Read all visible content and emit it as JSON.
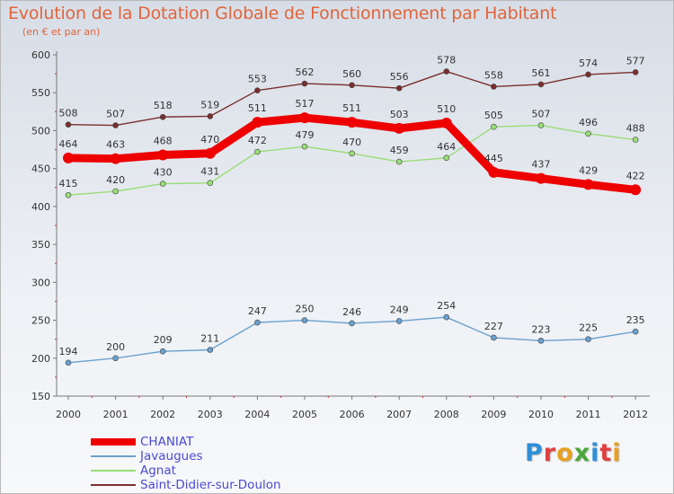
{
  "header": {
    "title": "Evolution de la Dotation Globale de Fonctionnement par Habitant",
    "subtitle": "(en € et par an)"
  },
  "chart_data": {
    "type": "line",
    "title": "Evolution de la Dotation Globale de Fonctionnement par Habitant",
    "subtitle": "(en € et par an)",
    "xlabel": "",
    "ylabel": "",
    "x": [
      "2000",
      "2001",
      "2002",
      "2003",
      "2004",
      "2005",
      "2006",
      "2007",
      "2008",
      "2009",
      "2010",
      "2011",
      "2012"
    ],
    "ylim": [
      150,
      600
    ],
    "yticks": [
      150,
      200,
      250,
      300,
      350,
      400,
      450,
      500,
      550,
      600
    ],
    "grid": false,
    "legend_position": "bottom-left",
    "series": [
      {
        "name": "CHANIAT",
        "color": "#ee0000",
        "emphasis": true,
        "values": [
          464,
          463,
          468,
          470,
          511,
          517,
          511,
          503,
          510,
          445,
          437,
          429,
          422
        ]
      },
      {
        "name": "Javaugues",
        "color": "#6aa0cf",
        "emphasis": false,
        "values": [
          194,
          200,
          209,
          211,
          247,
          250,
          246,
          249,
          254,
          227,
          223,
          225,
          235
        ]
      },
      {
        "name": "Agnat",
        "color": "#99dd77",
        "emphasis": false,
        "values": [
          415,
          420,
          430,
          431,
          472,
          479,
          470,
          459,
          464,
          505,
          507,
          496,
          488
        ]
      },
      {
        "name": "Saint-Didier-sur-Doulon",
        "color": "#7a2e2e",
        "emphasis": false,
        "values": [
          508,
          507,
          518,
          519,
          553,
          562,
          560,
          556,
          578,
          558,
          561,
          574,
          577
        ]
      }
    ]
  },
  "logo": {
    "letters": [
      "P",
      "r",
      "o",
      "x",
      "i",
      "t",
      "i"
    ],
    "colors": [
      "#2f8fd8",
      "#e04040",
      "#e8a020",
      "#4aa83a",
      "#2f8fd8",
      "#e04040",
      "#e8a020"
    ]
  }
}
